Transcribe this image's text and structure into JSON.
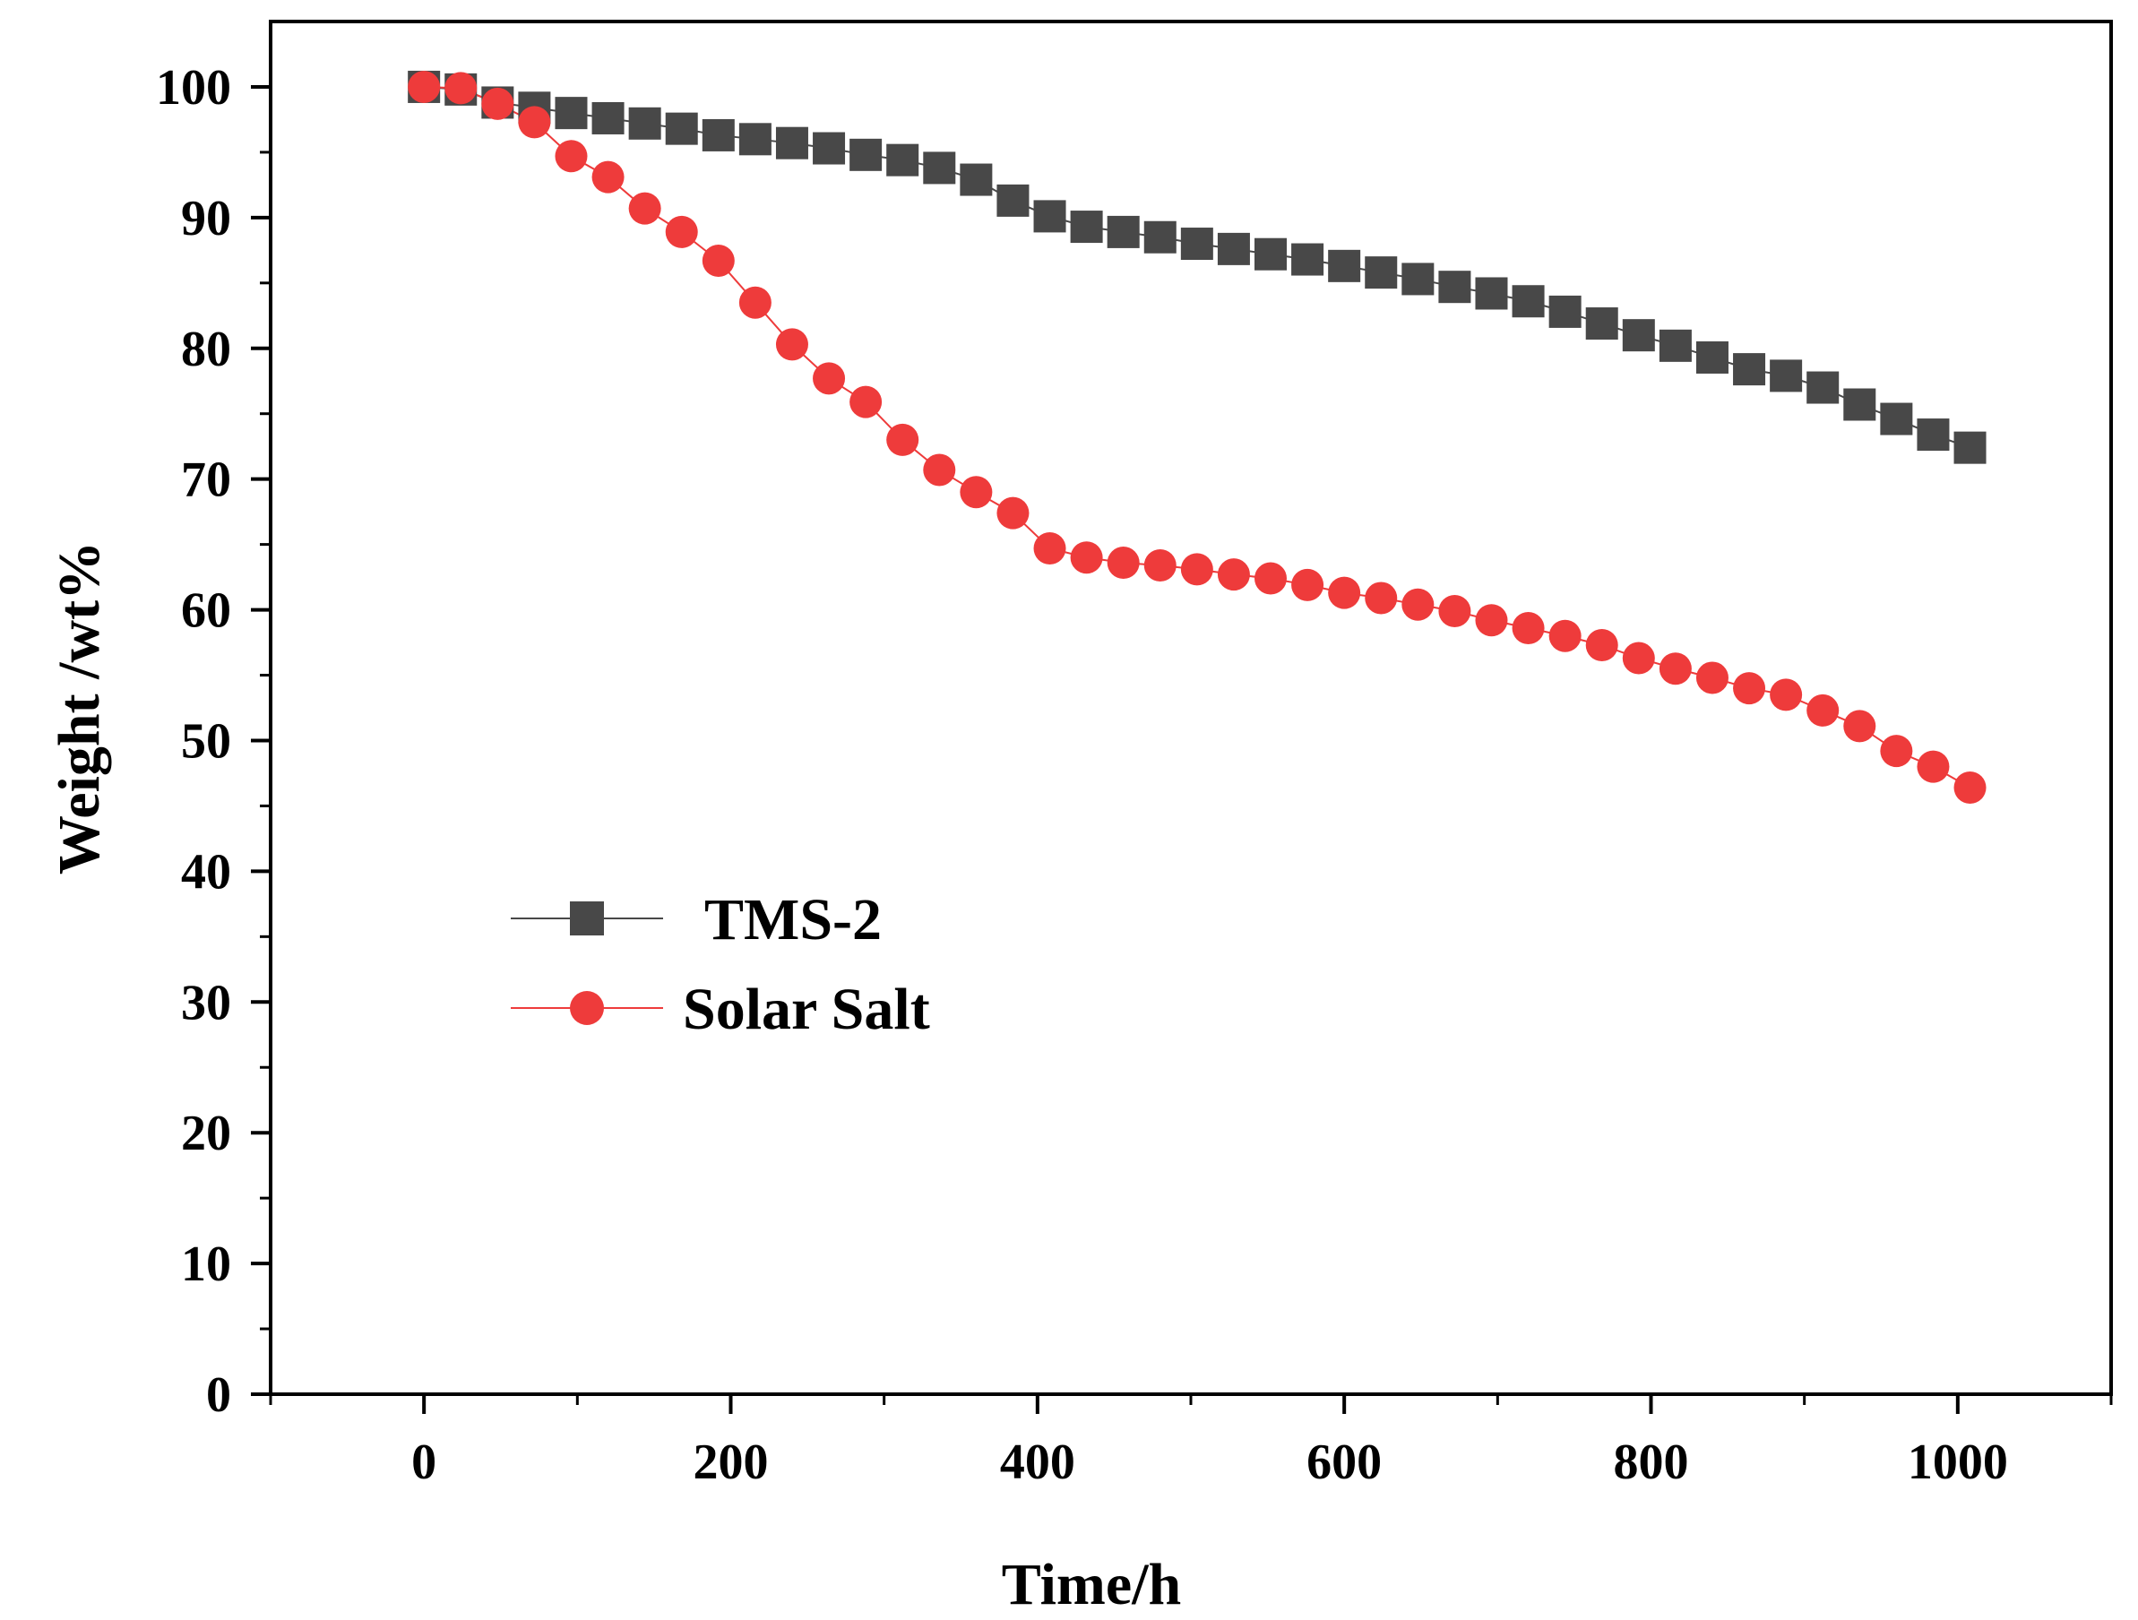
{
  "chart_data": {
    "type": "scatter",
    "title": "",
    "xlabel": "Time/h",
    "ylabel": "Weight /wt%",
    "xlim": [
      -100,
      1100
    ],
    "ylim": [
      0,
      105
    ],
    "xticks": [
      0,
      200,
      400,
      600,
      800,
      1000
    ],
    "xtick_labels": [
      "0",
      "200",
      "400",
      "600",
      "800",
      "1000"
    ],
    "yticks": [
      0,
      10,
      20,
      30,
      40,
      50,
      60,
      70,
      80,
      90,
      100
    ],
    "ytick_labels": [
      "0",
      "10",
      "20",
      "30",
      "40",
      "50",
      "60",
      "70",
      "80",
      "90",
      "100"
    ],
    "grid": false,
    "legend_position": "middle-left",
    "x": [
      0,
      24,
      48,
      72,
      96,
      120,
      144,
      168,
      192,
      216,
      240,
      264,
      288,
      312,
      336,
      360,
      384,
      408,
      432,
      456,
      480,
      504,
      528,
      552,
      576,
      600,
      624,
      648,
      672,
      696,
      720,
      744,
      768,
      792,
      816,
      840,
      864,
      888,
      912,
      936,
      960,
      984,
      1008
    ],
    "series": [
      {
        "name": "TMS-2",
        "marker": "square",
        "color": "#484848",
        "values": [
          100,
          99.8,
          98.8,
          98.4,
          98.0,
          97.6,
          97.2,
          96.8,
          96.3,
          96.0,
          95.7,
          95.3,
          94.8,
          94.4,
          93.8,
          92.9,
          91.3,
          90.1,
          89.3,
          88.9,
          88.5,
          88.0,
          87.6,
          87.2,
          86.8,
          86.3,
          85.8,
          85.3,
          84.7,
          84.2,
          83.6,
          82.8,
          81.9,
          81.0,
          80.2,
          79.3,
          78.4,
          77.9,
          77.0,
          75.7,
          74.6,
          73.4,
          72.4
        ]
      },
      {
        "name": "Solar Salt",
        "marker": "circle",
        "color": "#ee3b3b",
        "values": [
          100,
          99.9,
          98.7,
          97.3,
          94.7,
          93.1,
          90.7,
          88.9,
          86.7,
          83.5,
          80.3,
          77.7,
          75.9,
          73.0,
          70.7,
          69.0,
          67.4,
          64.7,
          64.0,
          63.6,
          63.4,
          63.1,
          62.7,
          62.4,
          61.9,
          61.3,
          60.9,
          60.4,
          59.9,
          59.2,
          58.6,
          58.0,
          57.3,
          56.3,
          55.5,
          54.8,
          54.0,
          53.5,
          52.3,
          51.1,
          49.2,
          48.0,
          46.4
        ]
      }
    ]
  }
}
